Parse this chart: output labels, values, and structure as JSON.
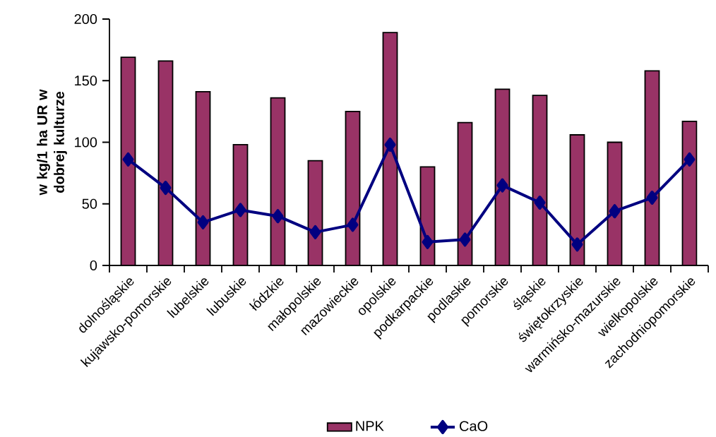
{
  "chart_data": {
    "type": "bar",
    "ylabel": "w kg/1 ha UR w dobrej kulturze",
    "categories": [
      "dolnośląskie",
      "kujawsko-pomorskie",
      "lubelskie",
      "lubuskie",
      "łódzkie",
      "małopolskie",
      "mazowieckie",
      "opolskie",
      "podkarpackie",
      "podlaskie",
      "pomorskie",
      "śląskie",
      "świętokrzyskie",
      "warmińsko-mazurskie",
      "wielkopolskie",
      "zachodniopomorskie"
    ],
    "series": [
      {
        "name": "NPK",
        "color": "#993366",
        "values": [
          169,
          166,
          141,
          98,
          136,
          85,
          125,
          189,
          80,
          116,
          143,
          138,
          106,
          100,
          158,
          117
        ]
      },
      {
        "name": "CaO",
        "type": "line",
        "color": "#000080",
        "marker": "diamond",
        "values": [
          86,
          63,
          35,
          45,
          40,
          27,
          33,
          98,
          19,
          21,
          65,
          51,
          17,
          44,
          55,
          86
        ]
      }
    ],
    "ylim": [
      0,
      200
    ],
    "yticks": [
      0,
      50,
      100,
      150,
      200
    ],
    "legend": "bottom"
  }
}
